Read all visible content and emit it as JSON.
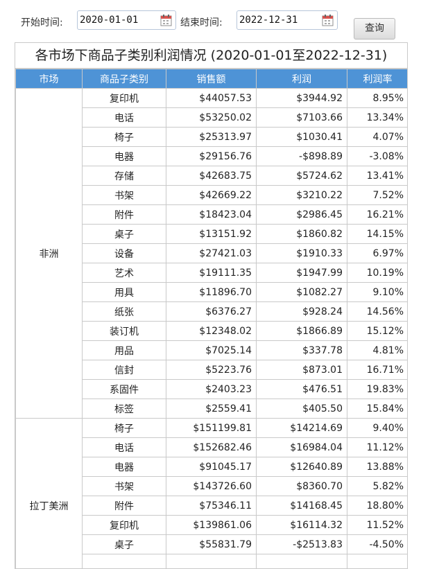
{
  "filters": {
    "start_label": "开始时间:",
    "start_value": "2020-01-01",
    "end_label": "结束时间:",
    "end_value": "2022-12-31",
    "calendar_icon": "calendar-icon",
    "query_label": "查询"
  },
  "report": {
    "title": "各市场下商品子类别利润情况 (2020-01-01至2022-12-31)",
    "columns": [
      "市场",
      "商品子类别",
      "销售额",
      "利润",
      "利润率"
    ],
    "header_color": "#4e93d6",
    "groups": [
      {
        "market": "非洲",
        "rows": [
          [
            "复印机",
            "$44057.53",
            "$3944.92",
            "8.95%"
          ],
          [
            "电话",
            "$53250.02",
            "$7103.66",
            "13.34%"
          ],
          [
            "椅子",
            "$25313.97",
            "$1030.41",
            "4.07%"
          ],
          [
            "电器",
            "$29156.76",
            "-$898.89",
            "-3.08%"
          ],
          [
            "存储",
            "$42683.75",
            "$5724.62",
            "13.41%"
          ],
          [
            "书架",
            "$42669.22",
            "$3210.22",
            "7.52%"
          ],
          [
            "附件",
            "$18423.04",
            "$2986.45",
            "16.21%"
          ],
          [
            "桌子",
            "$13151.92",
            "$1860.82",
            "14.15%"
          ],
          [
            "设备",
            "$27421.03",
            "$1910.33",
            "6.97%"
          ],
          [
            "艺术",
            "$19111.35",
            "$1947.99",
            "10.19%"
          ],
          [
            "用具",
            "$11896.70",
            "$1082.27",
            "9.10%"
          ],
          [
            "纸张",
            "$6376.27",
            "$928.24",
            "14.56%"
          ],
          [
            "装订机",
            "$12348.02",
            "$1866.89",
            "15.12%"
          ],
          [
            "用品",
            "$7025.14",
            "$337.78",
            "4.81%"
          ],
          [
            "信封",
            "$5223.76",
            "$873.01",
            "16.71%"
          ],
          [
            "系固件",
            "$2403.23",
            "$476.51",
            "19.83%"
          ],
          [
            "标签",
            "$2559.41",
            "$405.50",
            "15.84%"
          ]
        ]
      },
      {
        "market": "拉丁美洲",
        "rows": [
          [
            "椅子",
            "$151199.81",
            "$14214.69",
            "9.40%"
          ],
          [
            "电话",
            "$152682.46",
            "$16984.04",
            "11.12%"
          ],
          [
            "电器",
            "$91045.17",
            "$12640.89",
            "13.88%"
          ],
          [
            "书架",
            "$143726.60",
            "$8360.70",
            "5.82%"
          ],
          [
            "附件",
            "$75346.11",
            "$14168.45",
            "18.80%"
          ],
          [
            "复印机",
            "$139861.06",
            "$16114.32",
            "11.52%"
          ],
          [
            "桌子",
            "$55831.79",
            "-$2513.83",
            "-4.50%"
          ],
          [
            "",
            "",
            "",
            ""
          ],
          [
            "",
            "",
            "",
            ""
          ]
        ]
      }
    ]
  }
}
